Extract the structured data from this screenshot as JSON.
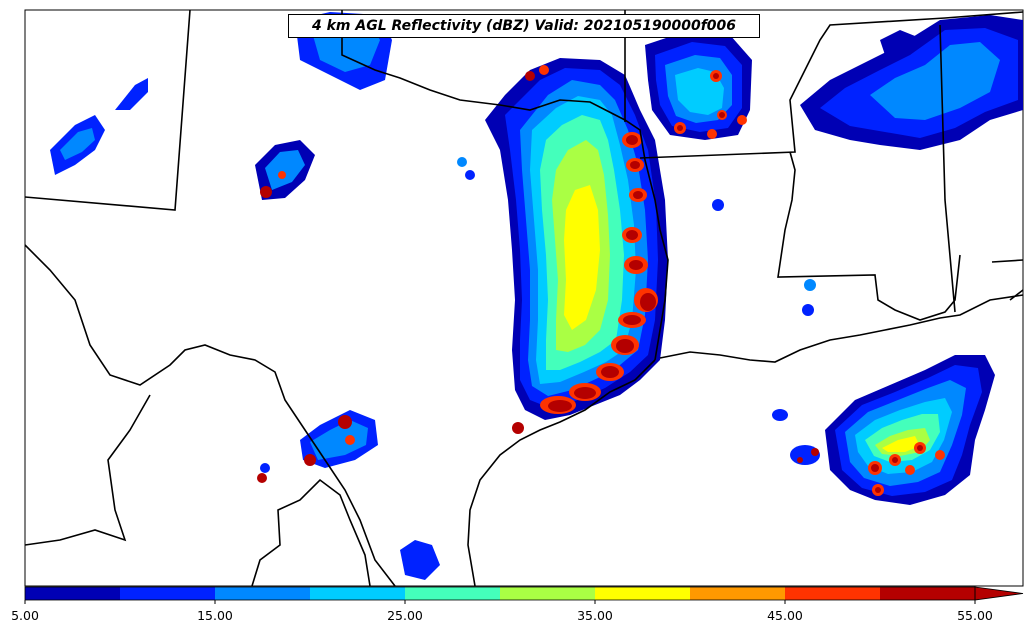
{
  "map": {
    "title": "4 km AGL Reflectivity (dBZ) Valid: 202105190000f006",
    "colorbar": {
      "tick_labels": [
        "5.00",
        "15.00",
        "25.00",
        "35.00",
        "45.00",
        "55.00"
      ],
      "extend": "max",
      "colors": [
        "#0000b4",
        "#0022ff",
        "#0088ff",
        "#00ccff",
        "#44ffbb",
        "#aaff44",
        "#ffff00",
        "#ff9900",
        "#ff3300",
        "#b40000"
      ]
    },
    "background_color": "#ffffff",
    "boundary_color": "#000000"
  }
}
